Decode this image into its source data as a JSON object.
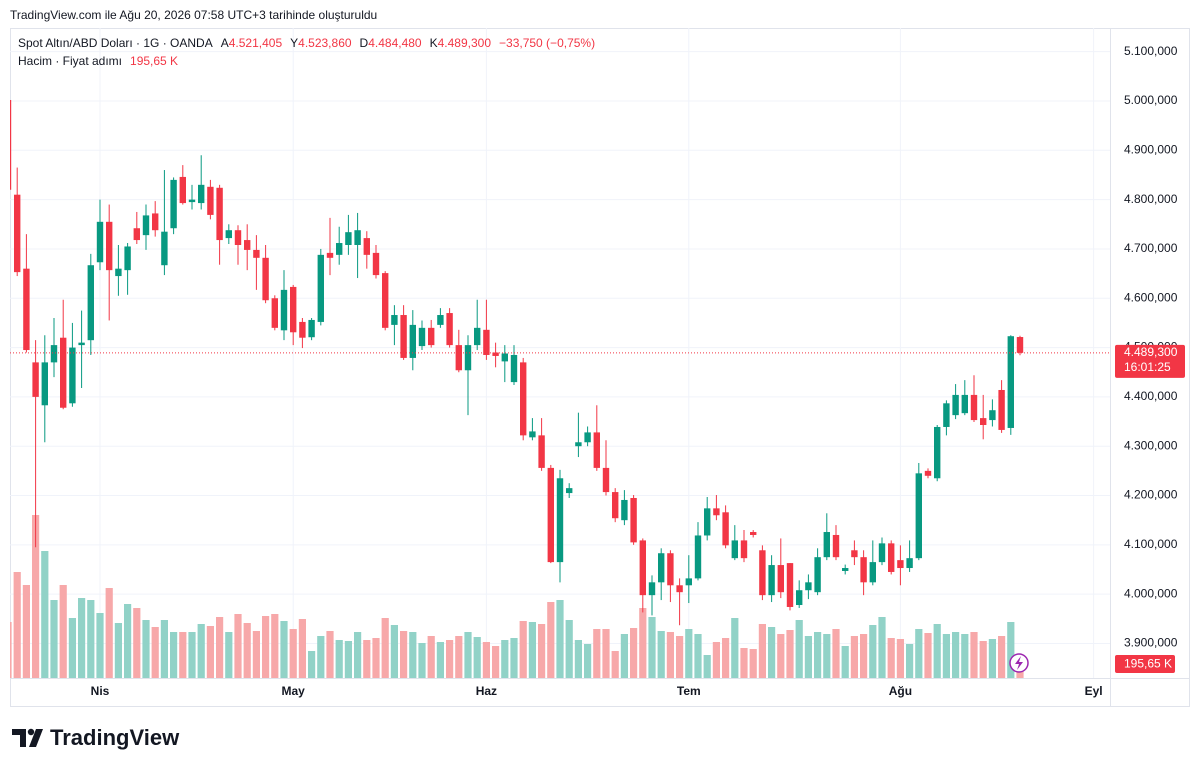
{
  "caption": "TradingView.com ile Ağu 20, 2026 07:58 UTC+3 tarihinde oluşturuldu",
  "brand": "TradingView",
  "chart_data": {
    "type": "candlestick",
    "title": "Spot Altın/ABD Doları · 1G · OANDA",
    "ohlc_labels": [
      {
        "key": "A",
        "label": "4.521,405"
      },
      {
        "key": "Y",
        "label": "4.523,860"
      },
      {
        "key": "D",
        "label": "4.484,480"
      },
      {
        "key": "K",
        "label": "4.489,300"
      }
    ],
    "change_label": "−33,750 (−0,75%)",
    "volume_title": "Hacim · Fiyat adımı",
    "volume_label": "195,65 K",
    "last_price_label": "4.489,300",
    "countdown": "16:01:25",
    "up_color": "#089981",
    "down_color": "#f23645",
    "up_volume_color": "#91d2c7",
    "down_volume_color": "#f7a8a9",
    "grid": true,
    "categories": [
      null,
      null,
      null,
      null,
      null,
      null,
      null,
      null,
      null,
      null,
      "Nis",
      null,
      null,
      null,
      null,
      null,
      null,
      null,
      null,
      null,
      null,
      null,
      null,
      null,
      null,
      null,
      null,
      null,
      null,
      null,
      null,
      "May",
      null,
      null,
      null,
      null,
      null,
      null,
      null,
      null,
      null,
      null,
      null,
      null,
      null,
      null,
      null,
      null,
      null,
      null,
      null,
      null,
      "Haz",
      null,
      null,
      null,
      null,
      null,
      null,
      null,
      null,
      null,
      null,
      null,
      null,
      null,
      null,
      null,
      null,
      null,
      null,
      null,
      null,
      null,
      "Tem",
      null,
      null,
      null,
      null,
      null,
      null,
      null,
      null,
      null,
      null,
      null,
      null,
      null,
      null,
      null,
      null,
      null,
      null,
      null,
      null,
      null,
      null,
      "Ağu",
      null,
      null,
      null,
      null,
      null,
      null,
      null,
      null,
      null,
      null,
      null,
      null,
      null,
      null,
      null,
      null,
      null,
      null,
      null,
      null,
      "Eyl",
      null,
      null
    ],
    "open": [
      5002,
      4810,
      4660,
      4470,
      4383,
      4470,
      4520,
      4387,
      4505,
      4515,
      4673,
      4755,
      4645,
      4657,
      4742,
      4728,
      4772,
      4667,
      4742,
      4846,
      4795,
      4793,
      4826,
      4824,
      4722,
      4738,
      4718,
      4698,
      4682,
      4600,
      4535,
      4623,
      4552,
      4521,
      4552,
      4692,
      4688,
      4708,
      4708,
      4722,
      4692,
      4651,
      4546,
      4566,
      4479,
      4503,
      4540,
      4546,
      4570,
      4505,
      4454,
      4505,
      4536,
      4490,
      4472,
      4430,
      4470,
      4318,
      4322,
      4256,
      4065,
      4205,
      4300,
      4308,
      4328,
      4256,
      4207,
      4150,
      4195,
      4109,
      3998,
      4024,
      4083,
      4018,
      4018,
      4032,
      4119,
      4174,
      4166,
      4073,
      4109,
      4126,
      4089,
      3998,
      4059,
      4063,
      3978,
      4008,
      4004,
      4075,
      4120,
      4047,
      4089,
      4075,
      4024,
      4065,
      4103,
      4069,
      4053,
      4073,
      4250,
      4235,
      4339,
      4363,
      4367,
      4404,
      4357,
      4353,
      4414,
      4337,
      4521.405,
      null,
      null,
      null,
      null,
      null,
      null,
      null,
      null,
      null,
      null
    ],
    "high": [
      5005,
      4865,
      4730,
      4515,
      4525,
      4560,
      4597,
      4550,
      4575,
      4690,
      4800,
      4790,
      4708,
      4712,
      4775,
      4790,
      4797,
      4860,
      4845,
      4870,
      4830,
      4890,
      4840,
      4830,
      4750,
      4748,
      4750,
      4728,
      4708,
      4606,
      4657,
      4627,
      4560,
      4560,
      4700,
      4763,
      4745,
      4769,
      4773,
      4736,
      4708,
      4655,
      4586,
      4586,
      4576,
      4555,
      4556,
      4580,
      4580,
      4536,
      4525,
      4597,
      4597,
      4510,
      4505,
      4505,
      4479,
      4357,
      4357,
      4262,
      4252,
      4225,
      4368,
      4340,
      4383,
      4312,
      4215,
      4211,
      4201,
      4113,
      4038,
      4093,
      4089,
      4032,
      4079,
      4146,
      4197,
      4201,
      4180,
      4140,
      4130,
      4130,
      4099,
      4079,
      4113,
      4063,
      4028,
      4040,
      4093,
      4164,
      4140,
      4060,
      4109,
      4089,
      4109,
      4115,
      4109,
      4099,
      4109,
      4266,
      4255,
      4343,
      4393,
      4426,
      4434,
      4444,
      4404,
      4395,
      4434,
      4525,
      4523.86,
      null,
      null,
      null,
      null,
      null,
      null,
      null,
      null,
      null,
      null
    ],
    "low": [
      4815,
      4645,
      4490,
      4095,
      4308,
      4440,
      4375,
      4380,
      4418,
      4485,
      4657,
      4555,
      4605,
      4607,
      4710,
      4698,
      4725,
      4647,
      4730,
      4790,
      4780,
      4780,
      4760,
      4668,
      4710,
      4668,
      4657,
      4617,
      4590,
      4535,
      4515,
      4505,
      4499,
      4515,
      4545,
      4647,
      4668,
      4688,
      4641,
      4660,
      4640,
      4535,
      4505,
      4475,
      4454,
      4495,
      4500,
      4540,
      4500,
      4450,
      4363,
      4495,
      4475,
      4460,
      4430,
      4424,
      4312,
      4312,
      4250,
      4063,
      4024,
      4195,
      4278,
      4300,
      4250,
      4200,
      4146,
      4140,
      4100,
      3963,
      3957,
      3988,
      3984,
      3937,
      3982,
      4028,
      4109,
      4150,
      4093,
      4069,
      4065,
      4115,
      3988,
      3984,
      3992,
      3967,
      3972,
      3990,
      3998,
      4069,
      4069,
      4040,
      4059,
      3998,
      4018,
      4059,
      4040,
      4018,
      4045,
      4069,
      4235,
      4229,
      4322,
      4355,
      4363,
      4349,
      4314,
      4340,
      4327,
      4323,
      4484.48,
      null,
      null,
      null,
      null,
      null,
      null,
      null,
      null,
      null,
      null
    ],
    "close": [
      4820,
      4653,
      4495,
      4400,
      4470,
      4505,
      4378,
      4500,
      4510,
      4667,
      4755,
      4657,
      4660,
      4705,
      4718,
      4768,
      4738,
      4735,
      4840,
      4793,
      4800,
      4830,
      4769,
      4718,
      4738,
      4708,
      4698,
      4682,
      4596,
      4540,
      4617,
      4531,
      4520,
      4556,
      4688,
      4682,
      4712,
      4734,
      4738,
      4688,
      4647,
      4540,
      4566,
      4479,
      4546,
      4540,
      4505,
      4566,
      4505,
      4454,
      4505,
      4540,
      4485,
      4483,
      4488,
      4485,
      4322,
      4330,
      4256,
      4065,
      4235,
      4215,
      4308,
      4328,
      4256,
      4207,
      4154,
      4191,
      4105,
      3998,
      4024,
      4083,
      4018,
      4004,
      4032,
      4119,
      4174,
      4160,
      4099,
      4109,
      4073,
      4120,
      3998,
      4059,
      4004,
      3974,
      4008,
      4024,
      4075,
      4126,
      4075,
      4053,
      4075,
      4024,
      4065,
      4103,
      4045,
      4053,
      4073,
      4245,
      4240,
      4339,
      4387,
      4404,
      4404,
      4353,
      4343,
      4373,
      4333,
      4523.05,
      4489.3,
      null,
      null,
      null,
      null,
      null,
      null,
      null,
      null,
      null,
      null
    ],
    "volume": [
      560,
      1060,
      930,
      1630,
      1270,
      780,
      930,
      600,
      800,
      780,
      650,
      900,
      550,
      740,
      700,
      580,
      510,
      580,
      460,
      460,
      460,
      540,
      520,
      610,
      460,
      640,
      550,
      470,
      620,
      640,
      570,
      490,
      590,
      270,
      420,
      470,
      380,
      370,
      460,
      380,
      400,
      600,
      530,
      470,
      460,
      350,
      420,
      360,
      380,
      420,
      460,
      410,
      360,
      320,
      380,
      400,
      570,
      560,
      540,
      760,
      780,
      580,
      380,
      340,
      490,
      490,
      270,
      440,
      500,
      700,
      610,
      470,
      460,
      420,
      490,
      440,
      230,
      360,
      400,
      600,
      300,
      290,
      540,
      510,
      440,
      480,
      580,
      420,
      460,
      440,
      490,
      320,
      420,
      440,
      530,
      610,
      400,
      390,
      340,
      490,
      450,
      540,
      440,
      460,
      440,
      460,
      370,
      390,
      420,
      560,
      195.65,
      null,
      null,
      null,
      null,
      null,
      null,
      null,
      null,
      null,
      null
    ],
    "ylim": [
      3830,
      5148
    ],
    "yticks": [
      {
        "value": 5100,
        "label": "5.100,000"
      },
      {
        "value": 5000,
        "label": "5.000,000"
      },
      {
        "value": 4900,
        "label": "4.900,000"
      },
      {
        "value": 4800,
        "label": "4.800,000"
      },
      {
        "value": 4700,
        "label": "4.700,000"
      },
      {
        "value": 4600,
        "label": "4.600,000"
      },
      {
        "value": 4500,
        "label": "4.500,000"
      },
      {
        "value": 4400,
        "label": "4.400,000"
      },
      {
        "value": 4300,
        "label": "4.300,000"
      },
      {
        "value": 4200,
        "label": "4.200,000"
      },
      {
        "value": 4100,
        "label": "4.100,000"
      },
      {
        "value": 4000,
        "label": "4.000,000"
      },
      {
        "value": 3900,
        "label": "3.900,000"
      }
    ],
    "vlim": [
      0,
      6500
    ]
  }
}
